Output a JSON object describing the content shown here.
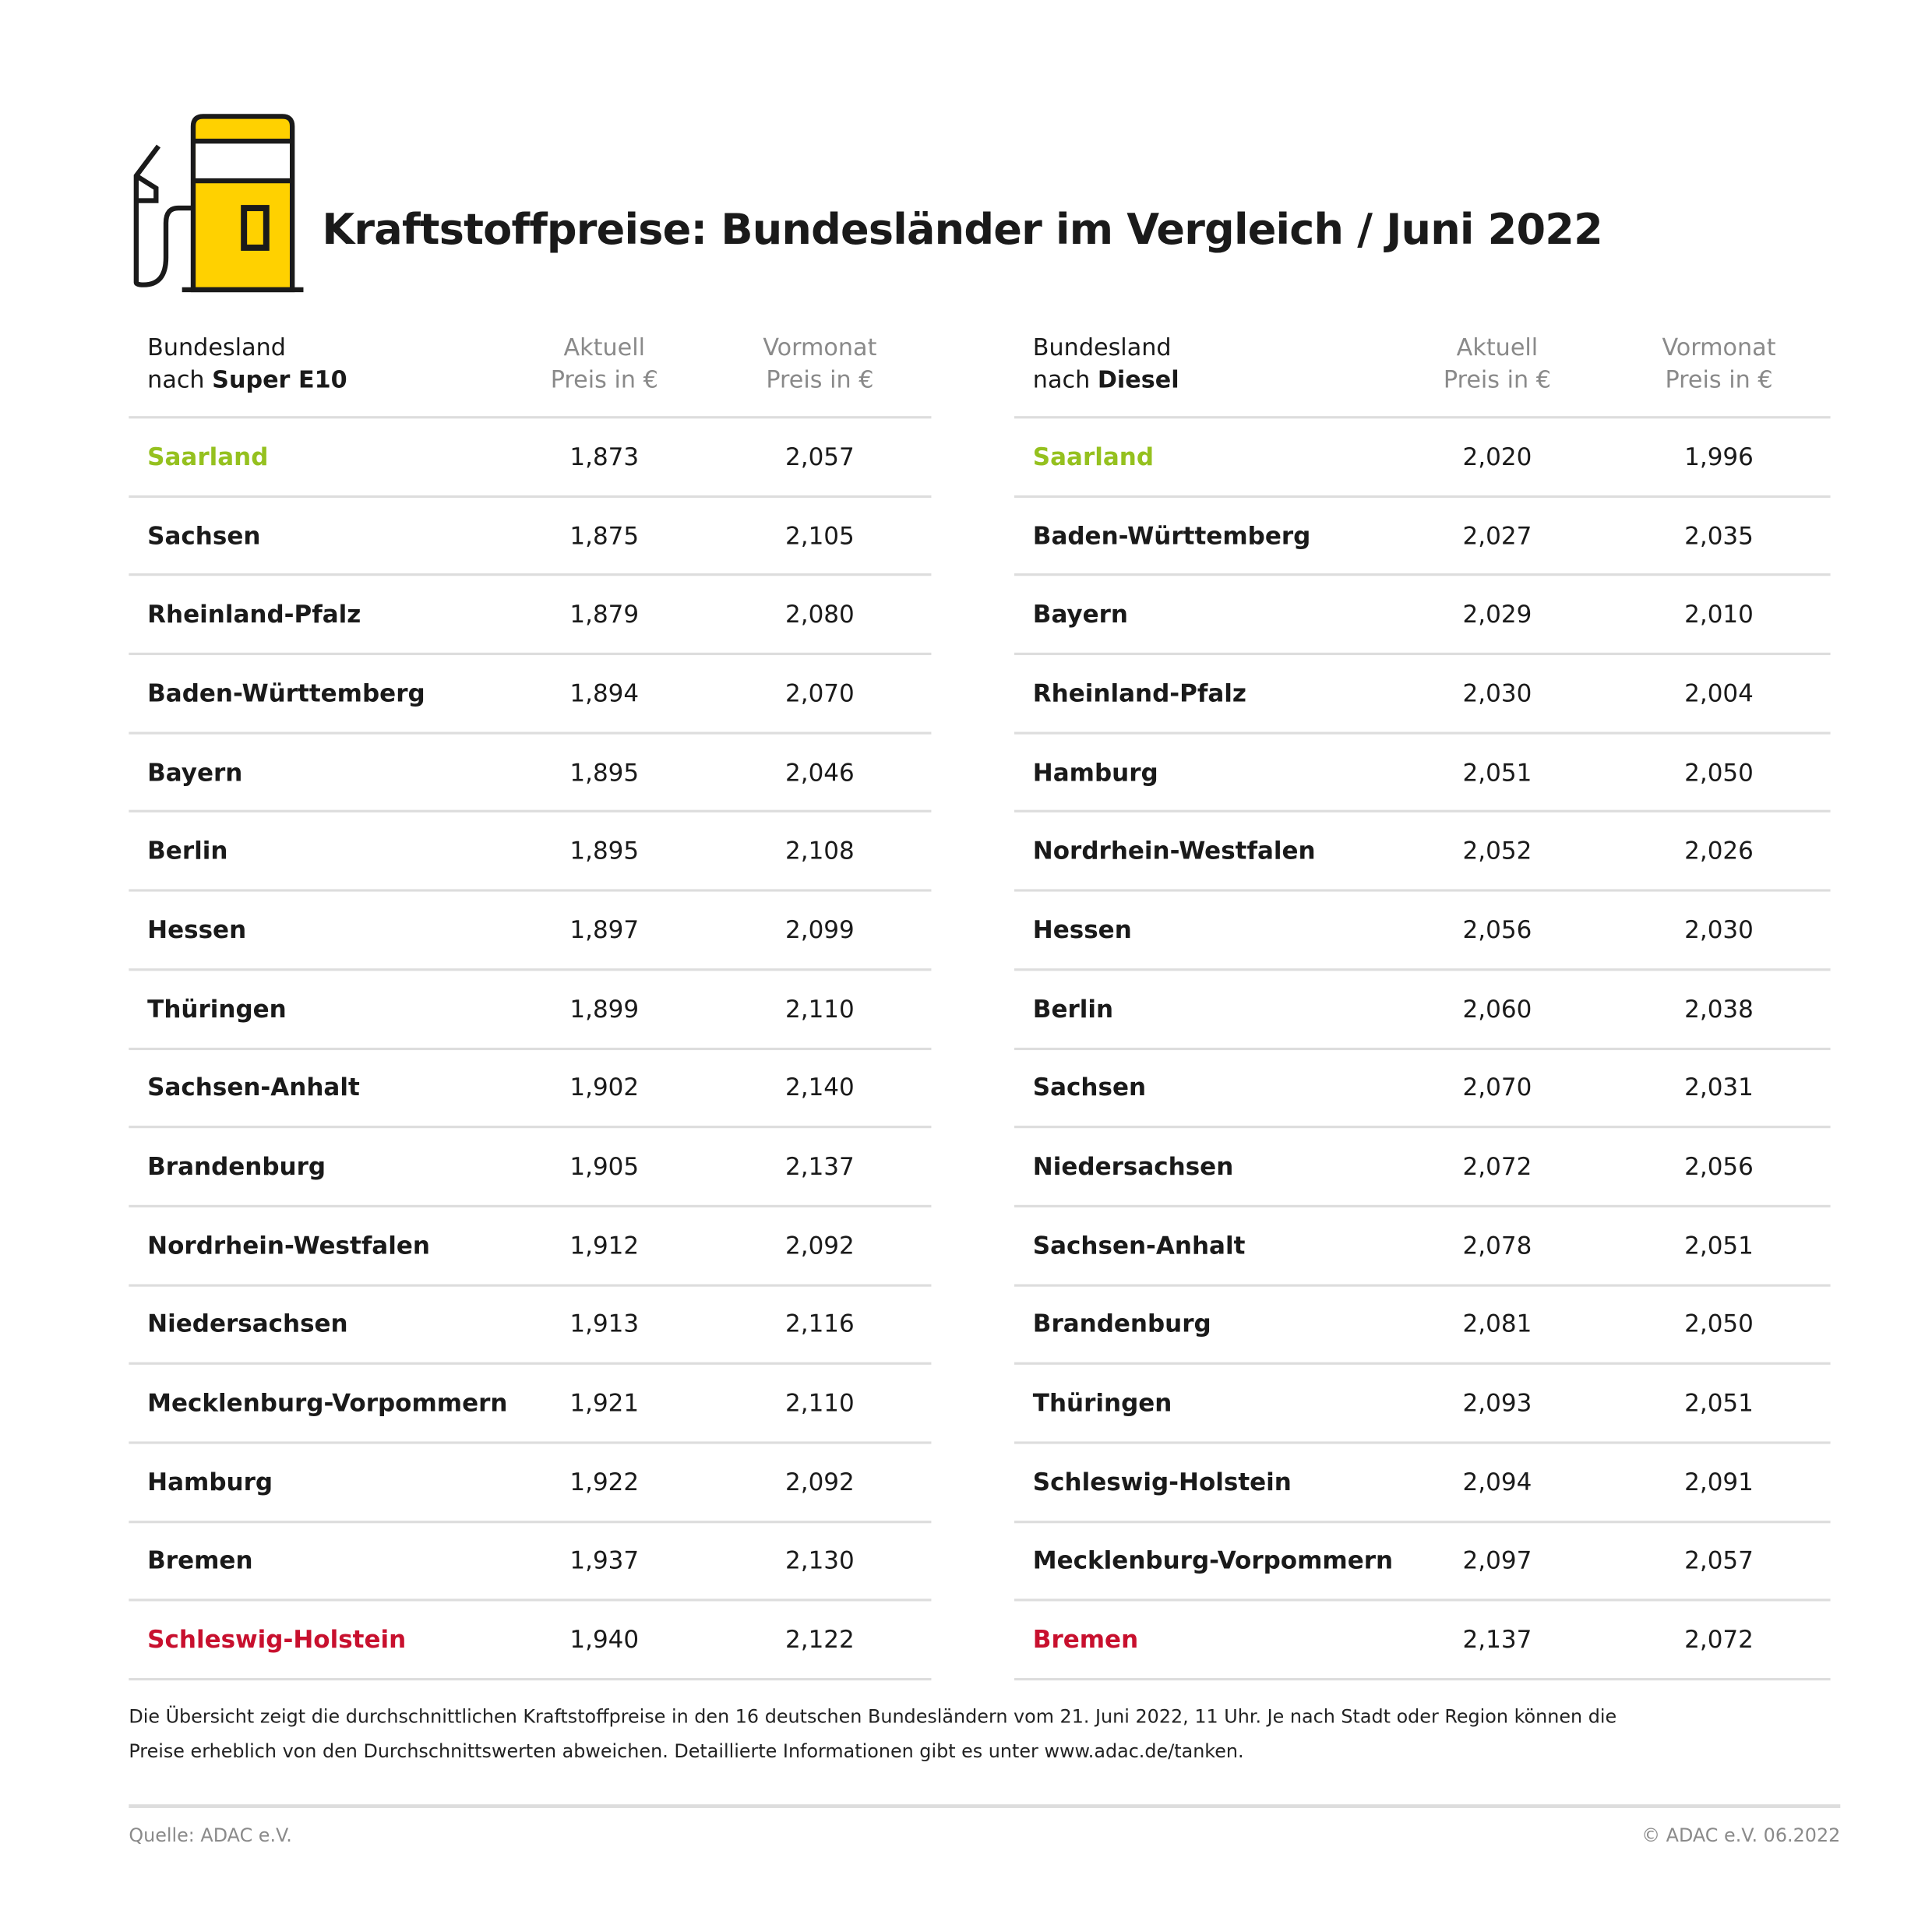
{
  "title": "Kraftstoffpreise: Bundesländer im Vergleich / Juni 2022",
  "colors": {
    "accent_yellow": "#ffd100",
    "lowest": "#95c11f",
    "highest": "#c8102e"
  },
  "icon": "fuel-pump-icon",
  "super_e10": {
    "header": {
      "name_line1": "Bundesland",
      "name_prefix": "nach ",
      "name_bold": "Super E10",
      "current_line1": "Aktuell",
      "current_line2": "Preis in €",
      "previous_line1": "Vormonat",
      "previous_line2": "Preis in €"
    },
    "rows": [
      {
        "state": "Saarland",
        "current": "1,873",
        "previous": "2,057",
        "highlight": "lowest"
      },
      {
        "state": "Sachsen",
        "current": "1,875",
        "previous": "2,105"
      },
      {
        "state": "Rheinland-Pfalz",
        "current": "1,879",
        "previous": "2,080"
      },
      {
        "state": "Baden-Württemberg",
        "current": "1,894",
        "previous": "2,070"
      },
      {
        "state": "Bayern",
        "current": "1,895",
        "previous": "2,046"
      },
      {
        "state": "Berlin",
        "current": "1,895",
        "previous": "2,108"
      },
      {
        "state": "Hessen",
        "current": "1,897",
        "previous": "2,099"
      },
      {
        "state": "Thüringen",
        "current": "1,899",
        "previous": "2,110"
      },
      {
        "state": "Sachsen-Anhalt",
        "current": "1,902",
        "previous": "2,140"
      },
      {
        "state": "Brandenburg",
        "current": "1,905",
        "previous": "2,137"
      },
      {
        "state": "Nordrhein-Westfalen",
        "current": "1,912",
        "previous": "2,092"
      },
      {
        "state": "Niedersachsen",
        "current": "1,913",
        "previous": "2,116"
      },
      {
        "state": "Mecklenburg-Vorpommern",
        "current": "1,921",
        "previous": "2,110"
      },
      {
        "state": "Hamburg",
        "current": "1,922",
        "previous": "2,092"
      },
      {
        "state": "Bremen",
        "current": "1,937",
        "previous": "2,130"
      },
      {
        "state": "Schleswig-Holstein",
        "current": "1,940",
        "previous": "2,122",
        "highlight": "highest"
      }
    ]
  },
  "diesel": {
    "header": {
      "name_line1": "Bundesland",
      "name_prefix": "nach ",
      "name_bold": "Diesel",
      "current_line1": "Aktuell",
      "current_line2": "Preis in €",
      "previous_line1": "Vormonat",
      "previous_line2": "Preis in €"
    },
    "rows": [
      {
        "state": "Saarland",
        "current": "2,020",
        "previous": "1,996",
        "highlight": "lowest"
      },
      {
        "state": "Baden-Württemberg",
        "current": "2,027",
        "previous": "2,035"
      },
      {
        "state": "Bayern",
        "current": "2,029",
        "previous": "2,010"
      },
      {
        "state": "Rheinland-Pfalz",
        "current": "2,030",
        "previous": "2,004"
      },
      {
        "state": "Hamburg",
        "current": "2,051",
        "previous": "2,050"
      },
      {
        "state": "Nordrhein-Westfalen",
        "current": "2,052",
        "previous": "2,026"
      },
      {
        "state": "Hessen",
        "current": "2,056",
        "previous": "2,030"
      },
      {
        "state": "Berlin",
        "current": "2,060",
        "previous": "2,038"
      },
      {
        "state": "Sachsen",
        "current": "2,070",
        "previous": "2,031"
      },
      {
        "state": "Niedersachsen",
        "current": "2,072",
        "previous": "2,056"
      },
      {
        "state": "Sachsen-Anhalt",
        "current": "2,078",
        "previous": "2,051"
      },
      {
        "state": "Brandenburg",
        "current": "2,081",
        "previous": "2,050"
      },
      {
        "state": "Thüringen",
        "current": "2,093",
        "previous": "2,051"
      },
      {
        "state": "Schleswig-Holstein",
        "current": "2,094",
        "previous": "2,091"
      },
      {
        "state": "Mecklenburg-Vorpommern",
        "current": "2,097",
        "previous": "2,057"
      },
      {
        "state": "Bremen",
        "current": "2,137",
        "previous": "2,072",
        "highlight": "highest"
      }
    ]
  },
  "note_line1": "Die Übersicht zeigt die durchschnittlichen Kraftstoffpreise in den 16 deutschen Bundesländern vom 21. Juni 2022, 11 Uhr. Je nach Stadt oder Region können die",
  "note_line2": "Preise erheblich von den Durchschnittswerten abweichen. Detaillierte Informationen gibt es unter www.adac.de/tanken.",
  "source": "Quelle: ADAC e.V.",
  "copyright": "© ADAC e.V. 06.2022"
}
